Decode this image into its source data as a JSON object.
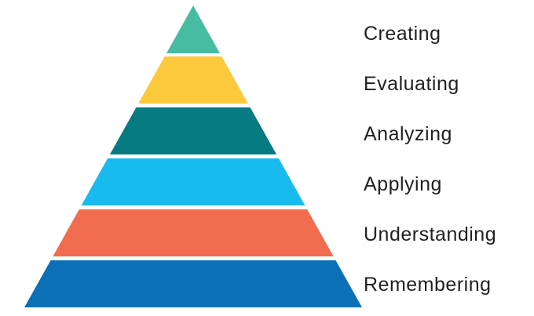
{
  "diagram": {
    "type": "pyramid",
    "background": "#ffffff",
    "label_color": "#221f1f",
    "levels": [
      {
        "label": "Creating",
        "color": "#48bca3"
      },
      {
        "label": "Evaluating",
        "color": "#fcc93c"
      },
      {
        "label": "Analyzing",
        "color": "#067b82"
      },
      {
        "label": "Applying",
        "color": "#18bbee"
      },
      {
        "label": "Understanding",
        "color": "#f26c50"
      },
      {
        "label": "Remembering",
        "color": "#0c70b7"
      }
    ]
  }
}
